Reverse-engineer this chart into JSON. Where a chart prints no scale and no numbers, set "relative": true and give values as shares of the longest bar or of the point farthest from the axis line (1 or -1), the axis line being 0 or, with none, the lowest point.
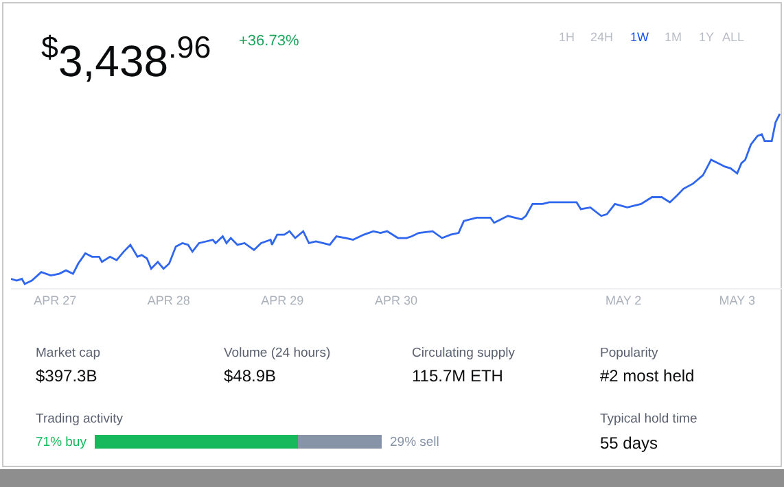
{
  "chart_data": [
    {
      "type": "line",
      "title": "$^{$}$3,438$^{.96}$",
      "subtitle": "+36.73%",
      "relative": true,
      "marker": "none",
      "line_style": "solid",
      "xlim": [
        "--04-26T14:42",
        "--05-03T09:36"
      ],
      "xticks": [
        {
          "value": "--04-27",
          "label": "APR 27"
        },
        {
          "value": "--04-28",
          "label": "APR 28"
        },
        {
          "value": "--04-29",
          "label": "APR 29"
        },
        {
          "value": "--04-30",
          "label": "APR 30"
        },
        {
          "value": "--05-02",
          "label": "MAY 2"
        },
        {
          "value": "--05-03",
          "label": "MAY 3"
        }
      ],
      "annotations": [
        "1H",
        "24H",
        "1W",
        "1M",
        "1Y",
        "ALL",
        "Market cap",
        "$397.3B",
        "Volume (24 hours)",
        "$48.9B",
        "Circulating supply",
        "115.7M ETH",
        "Popularity",
        "#2 most held",
        "Typical hold time",
        "55 days"
      ],
      "series": [
        {
          "color": "#2f66f0",
          "x": [
            "--04-26T14:42",
            "--04-26T15:54",
            "--04-26T17:00",
            "--04-26T17:36",
            "--04-26T19:06",
            "--04-26T21:06",
            "--04-26T23:06",
            "--04-27T00:54",
            "--04-27T02:18",
            "--04-27T03:48",
            "--04-27T04:54",
            "--04-27T06:24",
            "--04-27T07:48",
            "--04-27T09:18",
            "--04-27T09:54",
            "--04-27T11:36",
            "--04-27T13:00",
            "--04-27T14:30",
            "--04-27T15:54",
            "--04-27T17:24",
            "--04-27T18:18",
            "--04-27T19:24",
            "--04-27T20:18",
            "--04-27T21:42",
            "--04-27T22:54",
            "--04-28T00:06",
            "--04-28T01:30",
            "--04-28T02:54",
            "--04-28T04:06",
            "--04-28T05:00",
            "--04-28T06:24",
            "--04-28T07:54",
            "--04-28T09:18",
            "--04-28T09:54",
            "--04-28T11:24",
            "--04-28T12:12",
            "--04-28T13:06",
            "--04-28T14:30",
            "--04-28T16:00",
            "--04-28T18:00",
            "--04-28T19:30",
            "--04-28T21:30",
            "--04-28T21:48",
            "--04-28T22:54",
            "--04-29T00:24",
            "--04-29T01:30",
            "--04-29T02:42",
            "--04-29T04:24",
            "--04-29T05:36",
            "--04-29T07:06",
            "--04-29T10:00",
            "--04-29T11:24",
            "--04-29T13:24",
            "--04-29T14:54",
            "--04-29T17:12",
            "--04-29T19:12",
            "--04-29T20:42",
            "--04-29T22:06",
            "--04-30T00:24",
            "--04-30T02:12",
            "--04-30T03:18",
            "--04-30T04:48",
            "--04-30T07:42",
            "--04-30T09:42",
            "--04-30T11:30",
            "--04-30T13:12",
            "--04-30T14:18",
            "--04-30T17:00",
            "--04-30T19:54",
            "--04-30T20:42",
            "--04-30T23:36",
            "--05-01T02:30",
            "--05-01T03:24",
            "--05-01T04:48",
            "--05-01T06:54",
            "--05-01T08:18",
            "--05-01T11:12",
            "--05-01T14:06",
            "--05-01T15:00",
            "--05-01T17:00",
            "--05-01T19:18",
            "--05-01T20:30",
            "--05-01T22:12",
            "--05-02T00:48",
            "--05-02T03:42",
            "--05-02T06:00",
            "--05-02T08:06",
            "--05-02T09:48",
            "--05-02T11:18",
            "--05-02T12:42",
            "--05-02T14:42",
            "--05-02T16:48",
            "--05-02T18:30",
            "--05-02T20:00",
            "--05-02T21:24",
            "--05-02T22:36",
            "--05-03T00:00",
            "--05-03T00:54",
            "--05-03T01:42",
            "--05-03T02:54",
            "--05-03T04:18",
            "--05-03T05:12",
            "--05-03T05:48",
            "--05-03T07:18",
            "--05-03T08:06",
            "--05-03T09:00"
          ],
          "values": [
            0.03,
            0.02,
            0.03,
            0,
            0.02,
            0.07,
            0.05,
            0.06,
            0.08,
            0.06,
            0.12,
            0.18,
            0.16,
            0.16,
            0.13,
            0.16,
            0.14,
            0.19,
            0.23,
            0.16,
            0.17,
            0.15,
            0.09,
            0.13,
            0.09,
            0.12,
            0.22,
            0.24,
            0.23,
            0.19,
            0.24,
            0.25,
            0.26,
            0.24,
            0.28,
            0.24,
            0.27,
            0.23,
            0.24,
            0.2,
            0.24,
            0.26,
            0.23,
            0.29,
            0.29,
            0.31,
            0.27,
            0.31,
            0.24,
            0.25,
            0.23,
            0.28,
            0.27,
            0.26,
            0.29,
            0.31,
            0.3,
            0.31,
            0.27,
            0.27,
            0.28,
            0.3,
            0.31,
            0.27,
            0.29,
            0.3,
            0.37,
            0.39,
            0.39,
            0.36,
            0.4,
            0.38,
            0.4,
            0.47,
            0.47,
            0.48,
            0.48,
            0.48,
            0.44,
            0.45,
            0.4,
            0.41,
            0.47,
            0.45,
            0.47,
            0.51,
            0.51,
            0.48,
            0.52,
            0.56,
            0.59,
            0.64,
            0.73,
            0.71,
            0.69,
            0.68,
            0.65,
            0.71,
            0.73,
            0.82,
            0.87,
            0.88,
            0.84,
            0.84,
            0.95,
            1
          ]
        }
      ]
    },
    {
      "type": "bar",
      "orientation": "horizontal",
      "stacked": true,
      "title": "Trading activity",
      "tick_labels": false,
      "xlim": [
        0,
        100
      ],
      "categories": [
        null
      ],
      "series": [
        {
          "color": "#18b95c",
          "values": [
            71
          ],
          "value_labels": [
            "71% buy"
          ]
        },
        {
          "color": "#8793a6",
          "values": [
            29
          ],
          "value_labels": [
            "29% sell"
          ]
        }
      ]
    }
  ]
}
